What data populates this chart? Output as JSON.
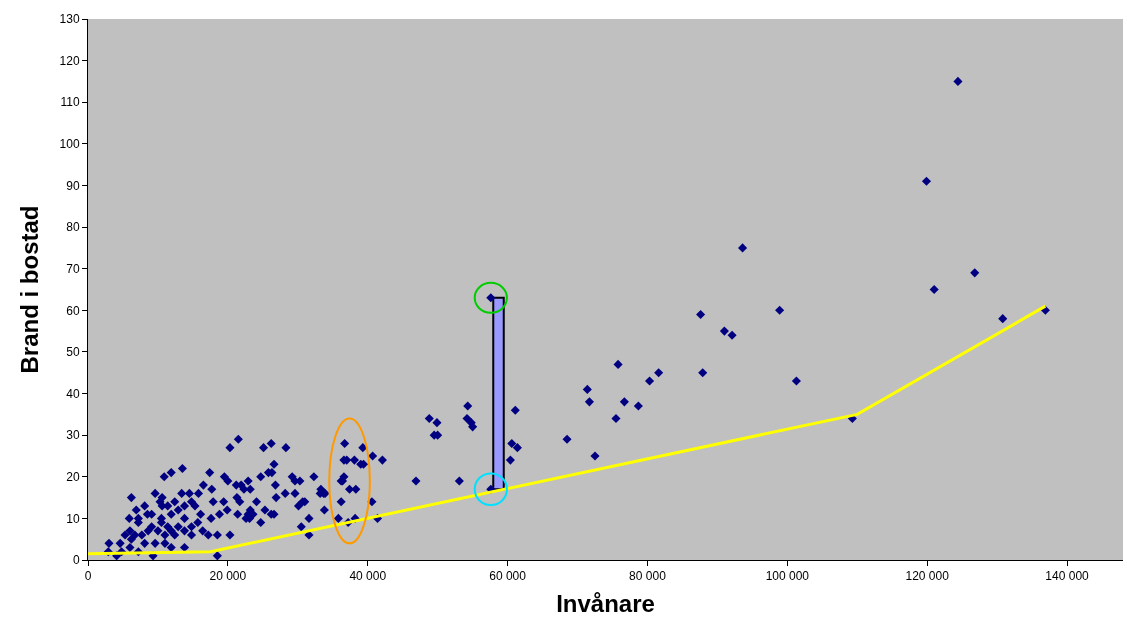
{
  "chart_data": {
    "type": "scatter",
    "xlabel": "Invånare",
    "ylabel": "Brand i bostad",
    "xlim": [
      0,
      148000
    ],
    "ylim": [
      0,
      130
    ],
    "xticks": [
      0,
      {
        "value": 20000,
        "label": "20 000"
      },
      {
        "value": 40000,
        "label": "40 000"
      },
      {
        "value": 60000,
        "label": "60 000"
      },
      {
        "value": 80000,
        "label": "80 000"
      },
      {
        "value": 100000,
        "label": "100 000"
      },
      {
        "value": 120000,
        "label": "120 000"
      },
      {
        "value": 140000,
        "label": "140 000"
      }
    ],
    "yticks": [
      0,
      10,
      20,
      30,
      40,
      50,
      60,
      70,
      80,
      90,
      100,
      110,
      120,
      130
    ],
    "grid": false,
    "marker": "diamond",
    "series": [
      {
        "color": "#000080",
        "x": [
          124400,
          119900,
          126800,
          121000,
          130800,
          136900,
          109300,
          93600,
          87600,
          98900,
          91000,
          92100,
          75800,
          81600,
          80300,
          87900,
          101300,
          71400,
          71700,
          76700,
          78700,
          75500,
          68500,
          72500,
          57600,
          54300,
          48800,
          49900,
          54200,
          54800,
          55000,
          49500,
          50000,
          61100,
          60600,
          61400,
          60400,
          46900,
          53100,
          57600,
          21500,
          25100,
          26200,
          28300,
          26600,
          25800,
          26300,
          24700,
          22900,
          21900,
          23200,
          26800,
          22300,
          29200,
          29600,
          30300,
          32300,
          33300,
          33700,
          33200,
          33900,
          28200,
          29600,
          26900,
          30700,
          31000,
          30100,
          24100,
          21300,
          21700,
          23200,
          22900,
          25300,
          26200,
          26600,
          21400,
          33800,
          31600,
          30500,
          31600,
          24700,
          22600,
          23100,
          23600,
          36700,
          39300,
          36600,
          37000,
          38100,
          39000,
          39400,
          40700,
          42100,
          36600,
          36400,
          36200,
          37400,
          38300,
          36200,
          40600,
          35800,
          37200,
          38200,
          41400,
          20300,
          13500,
          11900,
          10900,
          17400,
          6200,
          9600,
          10600,
          13400,
          14500,
          15800,
          16500,
          17700,
          19500,
          20000,
          17900,
          19400,
          21200,
          6900,
          8100,
          5900,
          8500,
          10600,
          12400,
          13800,
          15300,
          16100,
          17600,
          18800,
          19900,
          18500,
          20300,
          18500,
          9300,
          3000,
          4600,
          2900,
          4100,
          6000,
          7200,
          5300,
          6700,
          9100,
          10000,
          11400,
          12400,
          13800,
          14800,
          15700,
          13800,
          11900,
          10500,
          9600,
          11000,
          8100,
          7200,
          11900,
          13800,
          6000,
          4800,
          10300,
          14800,
          12900,
          11400,
          9100,
          7200,
          8600,
          10500,
          12900,
          14800,
          16400,
          17200,
          6200,
          7700,
          11000,
          11900
        ],
        "values": [
          115,
          91,
          69,
          65,
          58,
          60,
          34,
          75,
          59,
          60,
          55,
          54,
          47,
          45,
          43,
          45,
          43,
          41,
          38,
          38,
          37,
          34,
          29,
          25,
          63,
          37,
          34,
          33,
          34,
          33,
          32,
          30,
          30,
          36,
          28,
          27,
          24,
          19,
          19,
          17,
          29,
          27,
          28,
          27,
          23,
          21,
          21,
          20,
          19,
          18,
          17,
          18,
          17,
          20,
          19,
          19,
          20,
          17,
          16,
          16,
          16,
          16,
          16,
          15,
          14,
          14,
          13,
          14,
          15,
          14,
          12,
          11,
          12,
          11,
          11,
          11,
          12,
          10,
          8,
          6,
          9,
          10,
          10,
          11,
          28,
          27,
          24,
          24,
          24,
          23,
          23,
          25,
          24,
          20,
          19,
          19,
          17,
          17,
          14,
          14,
          10,
          9,
          10,
          10,
          27,
          22,
          21,
          20,
          21,
          15,
          16,
          15,
          16,
          16,
          16,
          18,
          17,
          20,
          19,
          14,
          14,
          18,
          12,
          13,
          10,
          11,
          13,
          14,
          13,
          13,
          11,
          10,
          11,
          12,
          6,
          6,
          1,
          1,
          4,
          4,
          2,
          1,
          7,
          9,
          6,
          6,
          8,
          7,
          8,
          6,
          7,
          6,
          9,
          10,
          11,
          10,
          4,
          4,
          4,
          2,
          3,
          3,
          3,
          2,
          14,
          14,
          12,
          13,
          11,
          10,
          7,
          9,
          8,
          8,
          7,
          6,
          5,
          6,
          6,
          7
        ]
      },
      {
        "type": "line",
        "color": "#ffff00",
        "marker": "none",
        "line_style": "solid",
        "x": [
          0,
          17500,
          110000,
          136900
        ],
        "values": [
          1.5,
          2,
          35,
          61
        ]
      },
      {
        "type": "bar",
        "color": "#9999ff",
        "x": [
          58700
        ],
        "base": [
          17
        ],
        "values": [
          46
        ]
      }
    ]
  }
}
